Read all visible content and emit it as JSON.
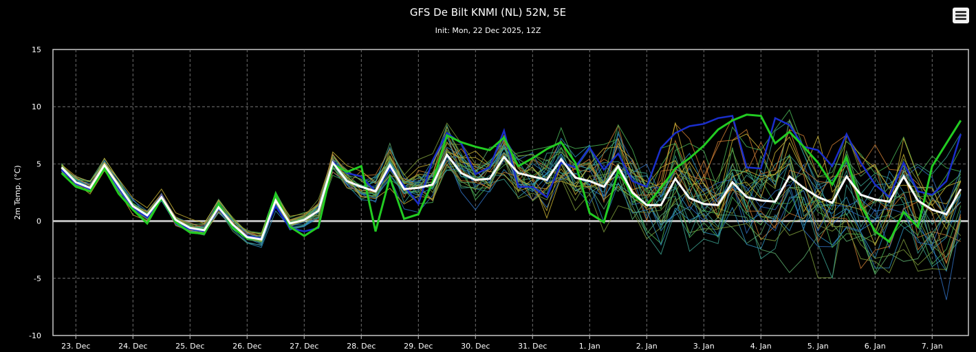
{
  "chart_data": {
    "type": "line",
    "title": "GFS De Bilt KNMI (NL) 52N, 5E",
    "subtitle": "Init: Mon, 22 Dec 2025, 12Z",
    "ylabel": "2m Temp. (°C)",
    "ylim": [
      -10,
      15
    ],
    "yticks": [
      15,
      10,
      5,
      0,
      -5,
      -10
    ],
    "xlabels": [
      "23. Dec",
      "24. Dec",
      "25. Dec",
      "26. Dec",
      "27. Dec",
      "28. Dec",
      "29. Dec",
      "30. Dec",
      "31. Dec",
      "1. Jan",
      "2. Jan",
      "3. Jan",
      "4. Jan",
      "5. Jan",
      "6. Jan",
      "7. Jan"
    ],
    "grid": true,
    "x_start_label": "22 Dec 2025 18Z",
    "x_step_hours": 6,
    "mean": [
      4.7,
      3.4,
      2.9,
      4.9,
      3.1,
      1.3,
      0.5,
      2.1,
      0.1,
      -0.6,
      -0.8,
      1.2,
      -0.3,
      -1.4,
      -1.6,
      1.8,
      -0.2,
      0.1,
      0.9,
      5.1,
      3.5,
      3.0,
      2.6,
      4.9,
      2.8,
      2.9,
      3.2,
      5.8,
      4.2,
      3.6,
      3.7,
      5.6,
      4.2,
      3.9,
      3.6,
      5.4,
      3.8,
      3.5,
      3.0,
      4.8,
      2.5,
      1.4,
      1.4,
      3.7,
      2.0,
      1.5,
      1.4,
      3.4,
      2.1,
      1.8,
      1.7,
      3.9,
      2.9,
      2.1,
      1.6,
      3.9,
      2.3,
      1.9,
      1.7,
      3.9,
      1.8,
      1.0,
      0.6,
      2.8
    ],
    "control": [
      4.2,
      3.0,
      2.6,
      4.6,
      2.4,
      1.0,
      -0.2,
      2.0,
      -0.1,
      -1.0,
      -1.1,
      1.5,
      -0.6,
      -1.5,
      -1.6,
      2.4,
      -0.5,
      -1.3,
      -0.5,
      5.0,
      4.3,
      4.8,
      -0.9,
      3.8,
      0.2,
      0.6,
      3.4,
      7.5,
      6.9,
      6.5,
      6.2,
      7.3,
      4.8,
      5.5,
      6.3,
      6.9,
      5.1,
      0.7,
      -0.1,
      4.4,
      2.3,
      1.4,
      2.9,
      4.6,
      5.5,
      6.6,
      8.0,
      8.8,
      9.3,
      9.2,
      6.8,
      7.8,
      6.5,
      5.1,
      3.2,
      5.6,
      1.4,
      -0.9,
      -1.8,
      0.8,
      -0.5,
      4.8,
      6.8,
      8.8
    ],
    "operational": [
      4.5,
      3.3,
      2.8,
      4.9,
      2.9,
      1.2,
      0.3,
      2.2,
      -0.2,
      -0.7,
      -0.9,
      1.1,
      -0.4,
      -1.3,
      -1.5,
      1.3,
      -0.6,
      -0.9,
      -0.6,
      5.2,
      4.2,
      3.9,
      2.6,
      4.6,
      3.1,
      1.5,
      5.3,
      7.7,
      6.8,
      4.1,
      4.7,
      7.9,
      3.0,
      3.0,
      2.1,
      5.1,
      4.7,
      6.4,
      4.5,
      5.9,
      3.5,
      3.0,
      6.4,
      7.7,
      8.3,
      8.5,
      9.0,
      9.2,
      4.7,
      4.6,
      9.0,
      8.4,
      6.5,
      6.2,
      4.8,
      7.6,
      5.1,
      3.2,
      2.1,
      5.1,
      2.6,
      2.3,
      3.5,
      7.6
    ],
    "ensemble_colors": [
      "#2e8fbe",
      "#3aa08e",
      "#4ab355",
      "#c8b232",
      "#c87a32",
      "#7a9a3a",
      "#2f6fc0",
      "#5aa86a"
    ],
    "mean_color": "#ffffff",
    "control_color": "#22cc22",
    "operational_color": "#1a2ecc",
    "zero_line_color": "#c0c0c0"
  }
}
